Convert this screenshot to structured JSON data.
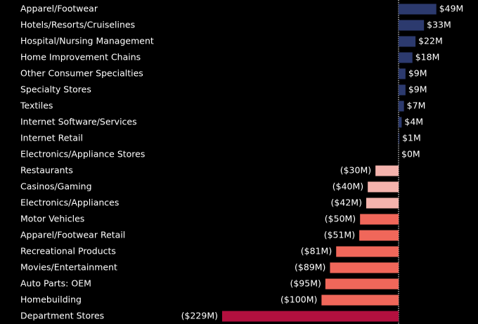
{
  "chart_data": {
    "type": "bar",
    "orientation": "horizontal",
    "categories": [
      "Apparel/Footwear",
      "Hotels/Resorts/Cruiselines",
      "Hospital/Nursing Management",
      "Home Improvement Chains",
      "Other Consumer Specialties",
      "Specialty Stores",
      "Textiles",
      "Internet Software/Services",
      "Internet Retail",
      "Electronics/Appliance Stores",
      "Restaurants",
      "Casinos/Gaming",
      "Electronics/Appliances",
      "Motor Vehicles",
      "Apparel/Footwear Retail",
      "Recreational Products",
      "Movies/Entertainment",
      "Auto Parts: OEM",
      "Homebuilding",
      "Department Stores"
    ],
    "values": [
      49,
      33,
      22,
      18,
      9,
      9,
      7,
      4,
      1,
      0,
      -30,
      -40,
      -42,
      -50,
      -51,
      -81,
      -89,
      -95,
      -100,
      -229
    ],
    "value_labels": [
      "$49M",
      "$33M",
      "$22M",
      "$18M",
      "$9M",
      "$9M",
      "$7M",
      "$4M",
      "$1M",
      "$0M",
      "($30M)",
      "($40M)",
      "($42M)",
      "($50M)",
      "($51M)",
      "($81M)",
      "($89M)",
      "($95M)",
      "($100M)",
      "($229M)"
    ],
    "colors": [
      "#2c3a6e",
      "#2c3a6e",
      "#2c3a6e",
      "#2c3a6e",
      "#2c3a6e",
      "#2c3a6e",
      "#2c3a6e",
      "#2c3a6e",
      "#2c3a6e",
      "#2c3a6e",
      "#f4b3ad",
      "#f4b3ad",
      "#f4b3ad",
      "#f0675a",
      "#f0675a",
      "#f0675a",
      "#f0675a",
      "#f0675a",
      "#f0675a",
      "#b3103f"
    ]
  }
}
